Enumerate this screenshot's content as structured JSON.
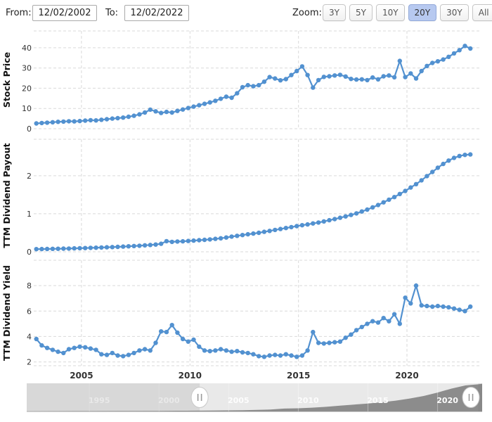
{
  "toolbar": {
    "from_label": "From:",
    "from_value": "12/02/2002",
    "to_label": "To:",
    "to_value": "12/02/2022",
    "zoom_label": "Zoom:",
    "zoom_buttons": [
      {
        "label": "3Y",
        "active": false
      },
      {
        "label": "5Y",
        "active": false
      },
      {
        "label": "10Y",
        "active": false
      },
      {
        "label": "20Y",
        "active": true
      },
      {
        "label": "30Y",
        "active": false
      },
      {
        "label": "All",
        "active": false
      }
    ],
    "active_button_color": "#b7c9f0"
  },
  "chart_axes": {
    "xlim": [
      2002.8,
      2023.4
    ],
    "xticks": [
      2005,
      2010,
      2015,
      2020
    ],
    "xticklabels": [
      "2005",
      "2010",
      "2015",
      "2020"
    ],
    "grid": "dashed",
    "grid_color": "#d9d9d9",
    "series_color": "#5291d0",
    "marker": "circle"
  },
  "chart_data": [
    {
      "type": "line",
      "title": "",
      "ylabel": "Stock Price",
      "ylim": [
        0,
        48.3
      ],
      "yticks": [
        0,
        10,
        20,
        30,
        40
      ],
      "x_start": 2002.92,
      "x_step": 0.25,
      "values": [
        2.6,
        2.8,
        3.0,
        3.2,
        3.4,
        3.5,
        3.7,
        3.6,
        3.8,
        4.0,
        4.2,
        4.1,
        4.4,
        4.7,
        5.0,
        5.2,
        5.5,
        5.9,
        6.4,
        7.1,
        8.0,
        9.4,
        8.6,
        7.8,
        8.3,
        8.0,
        8.8,
        9.5,
        10.2,
        10.9,
        11.6,
        12.3,
        13.0,
        13.8,
        14.8,
        15.8,
        15.3,
        17.5,
        20.5,
        21.5,
        21.0,
        21.5,
        23.2,
        25.5,
        24.8,
        23.9,
        24.5,
        26.5,
        28.5,
        30.8,
        26.5,
        20.3,
        24.0,
        25.6,
        25.9,
        26.3,
        26.6,
        25.8,
        24.6,
        24.3,
        24.4,
        24.0,
        25.3,
        24.4,
        25.9,
        26.3,
        25.4,
        33.5,
        25.5,
        27.3,
        24.8,
        28.5,
        31.0,
        32.5,
        33.3,
        34.2,
        35.5,
        37.2,
        38.8,
        40.9,
        39.6
      ]
    },
    {
      "type": "line",
      "title": "",
      "ylabel": "TTM Dividend Payout",
      "ylim": [
        0,
        2.96
      ],
      "yticks": [
        0,
        1,
        2
      ],
      "x_start": 2002.92,
      "x_step": 0.25,
      "values": [
        0.07,
        0.072,
        0.074,
        0.077,
        0.08,
        0.083,
        0.086,
        0.09,
        0.094,
        0.098,
        0.103,
        0.108,
        0.113,
        0.118,
        0.124,
        0.13,
        0.137,
        0.144,
        0.152,
        0.16,
        0.17,
        0.18,
        0.19,
        0.21,
        0.28,
        0.26,
        0.27,
        0.275,
        0.285,
        0.295,
        0.305,
        0.315,
        0.325,
        0.34,
        0.355,
        0.375,
        0.4,
        0.42,
        0.44,
        0.46,
        0.48,
        0.5,
        0.525,
        0.55,
        0.575,
        0.6,
        0.625,
        0.65,
        0.675,
        0.7,
        0.72,
        0.745,
        0.77,
        0.8,
        0.83,
        0.86,
        0.895,
        0.93,
        0.97,
        1.01,
        1.06,
        1.11,
        1.17,
        1.23,
        1.3,
        1.37,
        1.44,
        1.52,
        1.6,
        1.69,
        1.78,
        1.88,
        1.99,
        2.1,
        2.21,
        2.31,
        2.4,
        2.47,
        2.52,
        2.55,
        2.56
      ]
    },
    {
      "type": "line",
      "title": "",
      "ylabel": "TTM Dividend Yield",
      "ylim": [
        1.7,
        10.0
      ],
      "yticks": [
        2,
        4,
        6,
        8
      ],
      "show_xticklabels": true,
      "x_start": 2002.92,
      "x_step": 0.25,
      "values": [
        3.8,
        3.3,
        3.1,
        2.95,
        2.8,
        2.7,
        3.0,
        3.1,
        3.2,
        3.15,
        3.05,
        2.95,
        2.6,
        2.55,
        2.7,
        2.5,
        2.45,
        2.55,
        2.7,
        2.9,
        3.0,
        2.9,
        3.5,
        4.4,
        4.35,
        4.9,
        4.3,
        3.8,
        3.6,
        3.75,
        3.2,
        2.9,
        2.85,
        2.9,
        3.0,
        2.9,
        2.8,
        2.85,
        2.75,
        2.7,
        2.6,
        2.45,
        2.4,
        2.5,
        2.55,
        2.5,
        2.6,
        2.5,
        2.4,
        2.5,
        2.9,
        4.35,
        3.5,
        3.45,
        3.5,
        3.55,
        3.6,
        3.9,
        4.15,
        4.5,
        4.75,
        5.0,
        5.2,
        5.1,
        5.45,
        5.2,
        5.75,
        5.0,
        7.05,
        6.6,
        8.0,
        6.45,
        6.4,
        6.35,
        6.4,
        6.35,
        6.3,
        6.2,
        6.1,
        6.0,
        6.35
      ]
    }
  ],
  "navigator": {
    "type": "area",
    "labels": [
      "1995",
      "2000",
      "2005",
      "2010",
      "2015",
      "2020"
    ],
    "label_years": [
      1995,
      2000,
      2005,
      2010,
      2015,
      2020
    ],
    "xlim": [
      1990.5,
      2023.2
    ],
    "selected_range": [
      2002.92,
      2022.92
    ],
    "area_color": "#8c8c8c",
    "background_color": "#e9e9e9",
    "mask_color": "rgba(110,110,110,0.14)",
    "ymax": 2.65,
    "area": {
      "x": [
        1990.5,
        1994,
        1997,
        2000,
        2002,
        2004,
        2006,
        2008,
        2009,
        2010,
        2011,
        2012,
        2013,
        2014,
        2015,
        2016,
        2017,
        2018,
        2019,
        2020,
        2021,
        2022,
        2022.92,
        2023.2
      ],
      "y": [
        0.02,
        0.03,
        0.04,
        0.055,
        0.065,
        0.09,
        0.12,
        0.18,
        0.27,
        0.3,
        0.36,
        0.44,
        0.55,
        0.65,
        0.75,
        0.87,
        1.02,
        1.22,
        1.46,
        1.78,
        2.15,
        2.45,
        2.56,
        2.6
      ]
    }
  }
}
